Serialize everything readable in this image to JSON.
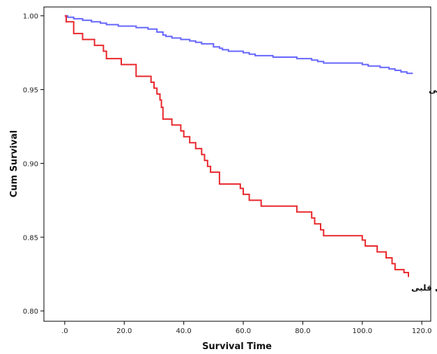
{
  "chart_data": {
    "type": "line",
    "step": true,
    "xlabel": "Survival Time",
    "ylabel": "Cum Survival",
    "xlim": [
      -7,
      123
    ],
    "ylim": [
      0.793,
      1.006
    ],
    "x_ticks": [
      {
        "value": 0,
        "label": ".0"
      },
      {
        "value": 20,
        "label": "20.0"
      },
      {
        "value": 40,
        "label": "40.0"
      },
      {
        "value": 60,
        "label": "60.0"
      },
      {
        "value": 80,
        "label": "80.0"
      },
      {
        "value": 100,
        "label": "100.0"
      },
      {
        "value": 120,
        "label": "120.0"
      }
    ],
    "y_ticks": [
      {
        "value": 0.8,
        "label": "0.80"
      },
      {
        "value": 0.85,
        "label": "0.85"
      },
      {
        "value": 0.9,
        "label": "0.90"
      },
      {
        "value": 0.95,
        "label": "0.95"
      },
      {
        "value": 1.0,
        "label": "1.00"
      }
    ],
    "grid": false,
    "series": [
      {
        "name": "فاقد سابقه بیماری قلبی",
        "color": "#6666ff",
        "points": [
          [
            0,
            1.0
          ],
          [
            1,
            0.999
          ],
          [
            3,
            0.998
          ],
          [
            6,
            0.997
          ],
          [
            9,
            0.996
          ],
          [
            12,
            0.995
          ],
          [
            14,
            0.994
          ],
          [
            18,
            0.993
          ],
          [
            24,
            0.992
          ],
          [
            28,
            0.991
          ],
          [
            31,
            0.989
          ],
          [
            33,
            0.987
          ],
          [
            34,
            0.986
          ],
          [
            36,
            0.985
          ],
          [
            39,
            0.984
          ],
          [
            42,
            0.983
          ],
          [
            44,
            0.982
          ],
          [
            46,
            0.981
          ],
          [
            50,
            0.979
          ],
          [
            52,
            0.978
          ],
          [
            53,
            0.977
          ],
          [
            55,
            0.976
          ],
          [
            60,
            0.975
          ],
          [
            62,
            0.974
          ],
          [
            64,
            0.973
          ],
          [
            70,
            0.972
          ],
          [
            78,
            0.971
          ],
          [
            83,
            0.97
          ],
          [
            85,
            0.969
          ],
          [
            87,
            0.968
          ],
          [
            92,
            0.968
          ],
          [
            100,
            0.967
          ],
          [
            102,
            0.966
          ],
          [
            106,
            0.965
          ],
          [
            109,
            0.964
          ],
          [
            111,
            0.963
          ],
          [
            113,
            0.962
          ],
          [
            115,
            0.961
          ],
          [
            117,
            0.961
          ]
        ]
      },
      {
        "name": "ابتلا به بیماری قلبی",
        "color": "#e8282d",
        "points": [
          [
            0,
            1.0
          ],
          [
            0.5,
            0.996
          ],
          [
            3,
            0.988
          ],
          [
            6,
            0.984
          ],
          [
            10,
            0.98
          ],
          [
            13,
            0.976
          ],
          [
            14,
            0.971
          ],
          [
            19,
            0.967
          ],
          [
            24,
            0.959
          ],
          [
            29,
            0.955
          ],
          [
            30,
            0.951
          ],
          [
            31,
            0.947
          ],
          [
            32,
            0.943
          ],
          [
            32.5,
            0.938
          ],
          [
            33,
            0.93
          ],
          [
            36,
            0.926
          ],
          [
            39,
            0.922
          ],
          [
            40,
            0.918
          ],
          [
            42,
            0.914
          ],
          [
            44,
            0.91
          ],
          [
            46,
            0.906
          ],
          [
            47,
            0.902
          ],
          [
            48,
            0.898
          ],
          [
            49,
            0.894
          ],
          [
            52,
            0.886
          ],
          [
            59,
            0.883
          ],
          [
            60,
            0.879
          ],
          [
            62,
            0.875
          ],
          [
            66,
            0.871
          ],
          [
            78,
            0.867
          ],
          [
            83,
            0.863
          ],
          [
            84,
            0.859
          ],
          [
            86,
            0.855
          ],
          [
            87,
            0.851
          ],
          [
            100,
            0.848
          ],
          [
            101,
            0.844
          ],
          [
            105,
            0.84
          ],
          [
            108,
            0.836
          ],
          [
            110,
            0.832
          ],
          [
            111,
            0.828
          ],
          [
            114,
            0.826
          ],
          [
            115.5,
            0.823
          ]
        ]
      }
    ]
  }
}
